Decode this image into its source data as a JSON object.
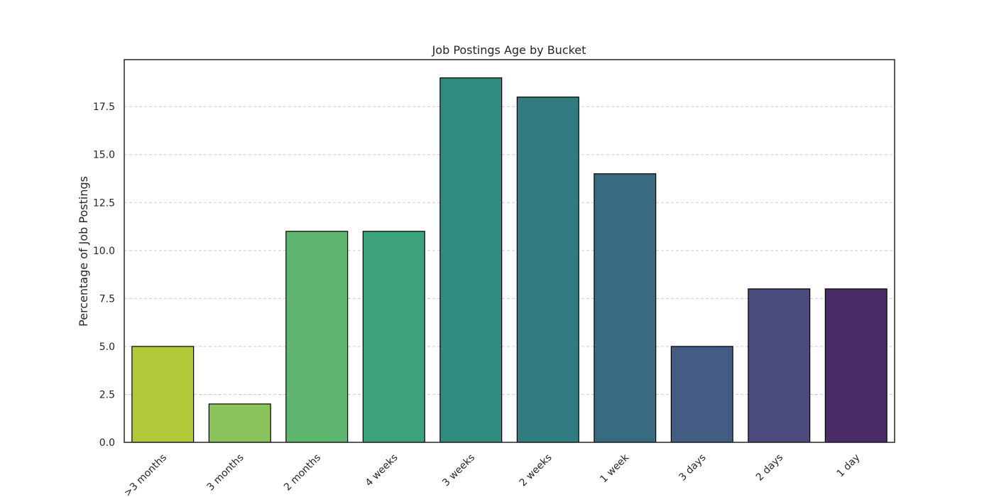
{
  "chart_data": {
    "type": "bar",
    "title": "Job Postings Age by Bucket",
    "xlabel": "",
    "ylabel": "Percentage of Job Postings",
    "categories": [
      ">3 months",
      "3 months",
      "2 months",
      "4 weeks",
      "3 weeks",
      "2 weeks",
      "1 week",
      "3 days",
      "2 days",
      "1 day"
    ],
    "values": [
      5,
      2,
      11,
      11,
      19,
      18,
      14,
      5,
      8,
      8
    ],
    "colors": [
      "#b2c93a",
      "#8bc45c",
      "#5fb66f",
      "#3ca27a",
      "#318c80",
      "#317c80",
      "#396b80",
      "#435c83",
      "#4b4a7e",
      "#4a2c68"
    ],
    "ylim": [
      0,
      19.95
    ],
    "yticks": [
      0,
      2.5,
      5,
      7.5,
      10,
      12.5,
      15,
      17.5
    ],
    "ytick_labels": [
      "0.0",
      "2.5",
      "5.0",
      "7.5",
      "10.0",
      "12.5",
      "15.0",
      "17.5"
    ],
    "grid": "y-dashed",
    "legend": "none"
  }
}
